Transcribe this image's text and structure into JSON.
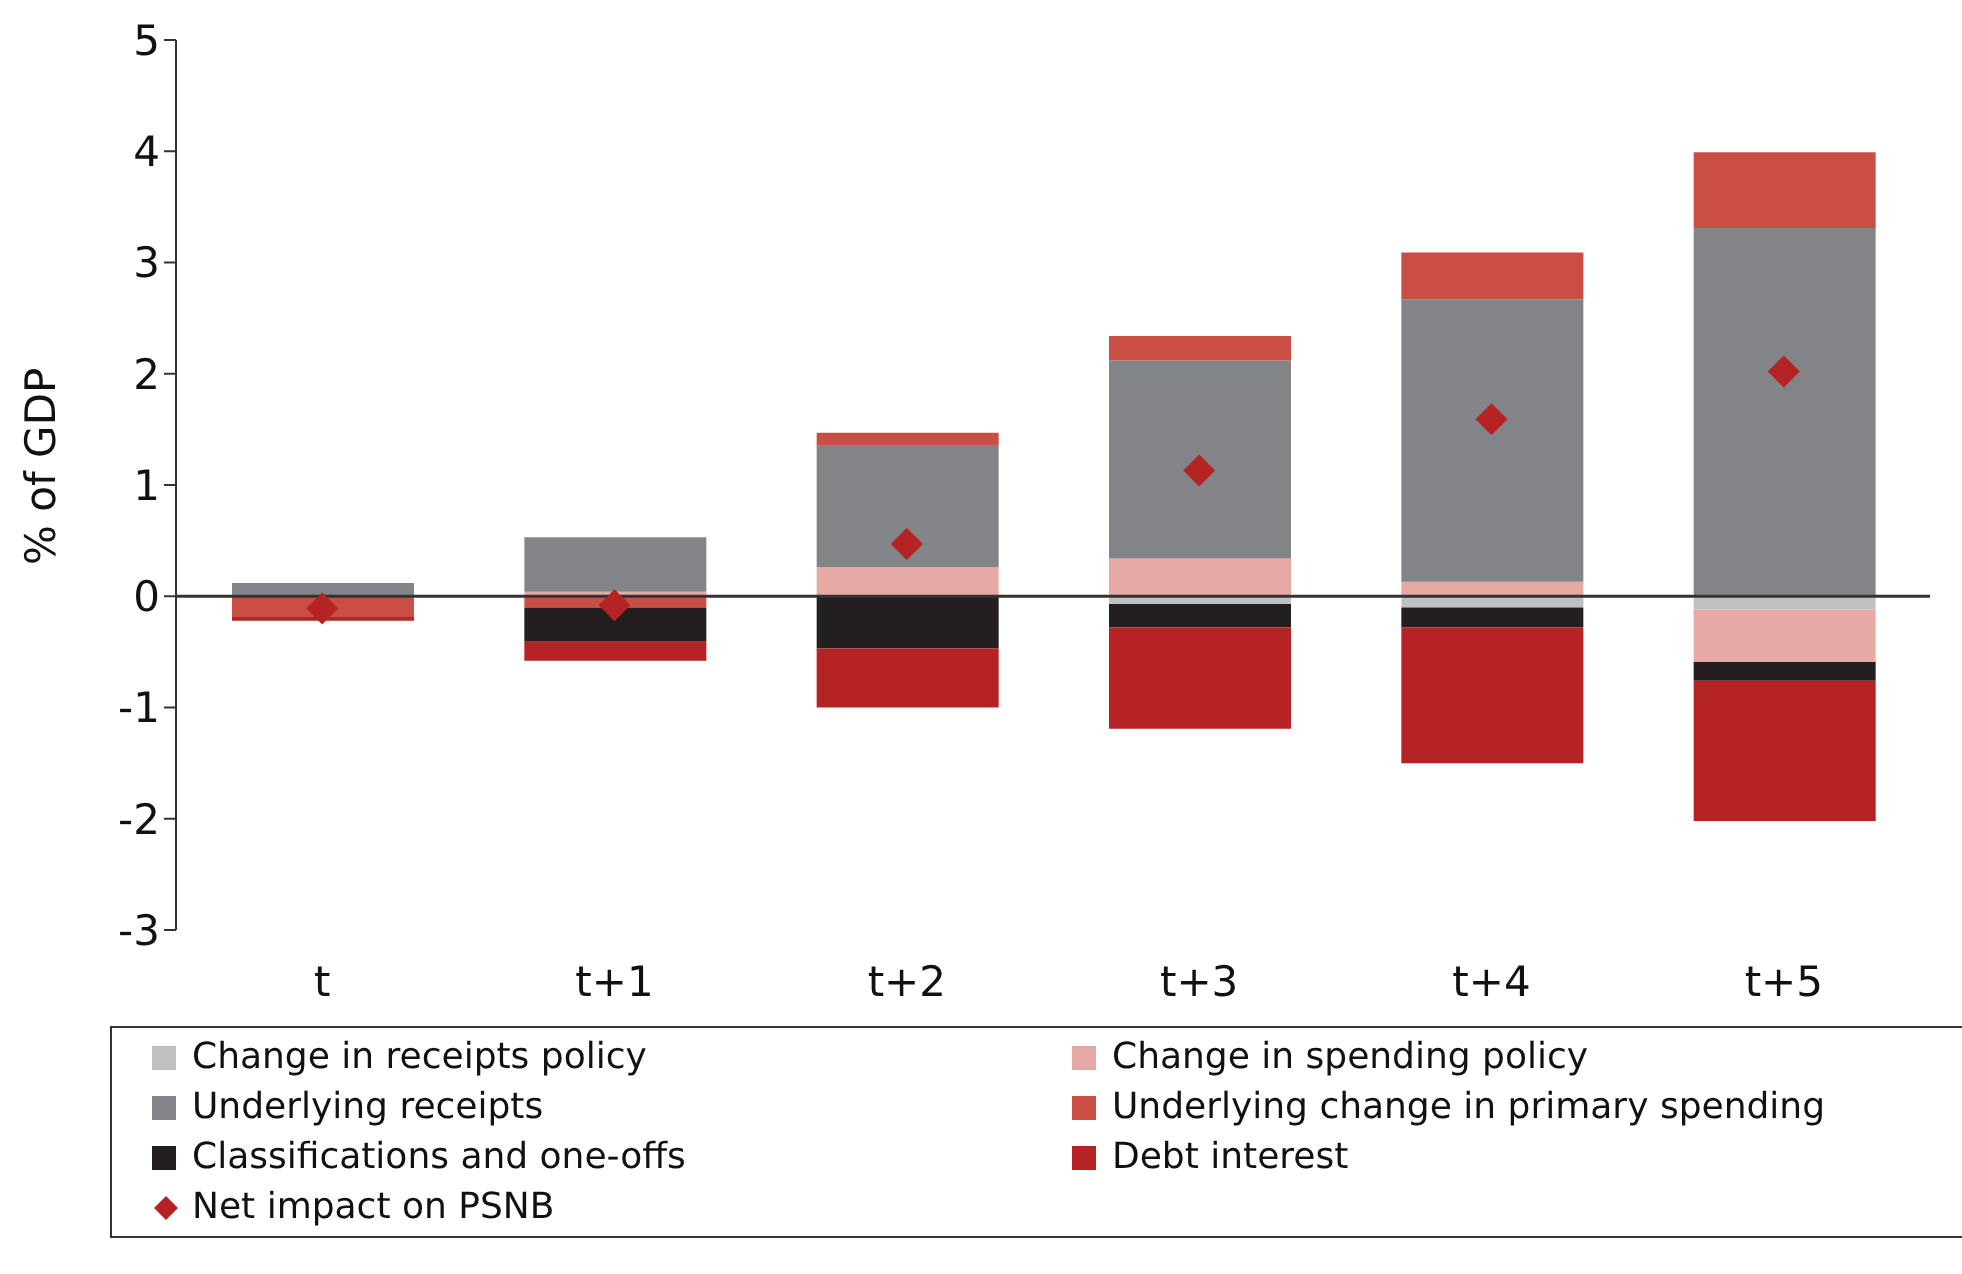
{
  "chart_data": {
    "type": "bar",
    "stacked": true,
    "ylabel": "% of GDP",
    "categories": [
      "t",
      "t+1",
      "t+2",
      "t+3",
      "t+4",
      "t+5"
    ],
    "ylim": [
      -3,
      5
    ],
    "yticks": [
      -3,
      -2,
      -1,
      0,
      1,
      2,
      3,
      4,
      5
    ],
    "legend": "bottom",
    "marker": "diamond",
    "series": [
      {
        "name": "Change in receipts policy",
        "color": "#c0c0c2",
        "values": [
          null,
          null,
          null,
          -0.07,
          -0.1,
          -0.12
        ]
      },
      {
        "name": "Change in spending policy",
        "color": "#e6a9a3",
        "values": [
          null,
          0.04,
          0.26,
          0.34,
          0.13,
          -0.47
        ]
      },
      {
        "name": "Underlying receipts",
        "color": "#838487",
        "values": [
          0.12,
          0.49,
          1.1,
          1.78,
          2.54,
          3.31
        ]
      },
      {
        "name": "Underlying change in primary spending",
        "color": "#c94f44",
        "values": [
          -0.18,
          -0.1,
          0.11,
          0.22,
          0.42,
          0.68
        ]
      },
      {
        "name": "Classifications and one-offs",
        "color": "#231f20",
        "values": [
          null,
          -0.31,
          -0.47,
          -0.21,
          -0.18,
          -0.17
        ]
      },
      {
        "name": "Debt interest",
        "color": "#b52325",
        "values": [
          -0.04,
          -0.17,
          -0.53,
          -0.91,
          -1.22,
          -1.26
        ]
      },
      {
        "name": "Net impact on PSNB",
        "type": "scatter",
        "color": "#b52325",
        "values": [
          -0.11,
          -0.08,
          0.47,
          1.13,
          1.59,
          2.02
        ]
      }
    ]
  }
}
